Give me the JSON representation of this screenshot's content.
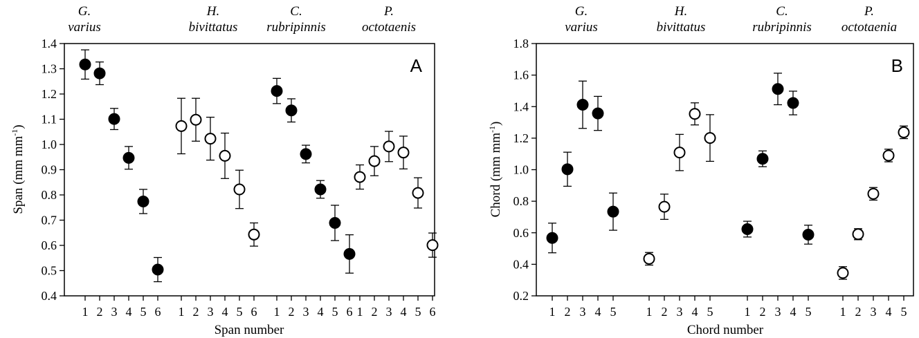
{
  "chart_data": [
    {
      "panel_label": "A",
      "type": "scatter",
      "xlabel": "Span number",
      "ylabel": "Span (mm mm",
      "ylabel_sup": "-1",
      "ylabel_end": ")",
      "ylim": [
        0.4,
        1.4
      ],
      "yticks": [
        "0.4",
        "0.5",
        "0.6",
        "0.7",
        "0.8",
        "0.9",
        "1.0",
        "1.1",
        "1.2",
        "1.3",
        "1.4"
      ],
      "groups": [
        {
          "species": [
            "G.",
            "varius"
          ],
          "filled": true,
          "x": [
            "1",
            "2",
            "3",
            "4",
            "5",
            "6"
          ],
          "y": [
            1.317,
            1.282,
            1.101,
            0.947,
            0.774,
            0.504
          ],
          "err": [
            0.058,
            0.045,
            0.042,
            0.045,
            0.048,
            0.048
          ]
        },
        {
          "species": [
            "H.",
            "bivittatus"
          ],
          "filled": false,
          "x": [
            "1",
            "2",
            "3",
            "4",
            "5",
            "6"
          ],
          "y": [
            1.073,
            1.098,
            1.023,
            0.955,
            0.822,
            0.643
          ],
          "err": [
            0.11,
            0.085,
            0.085,
            0.09,
            0.076,
            0.046
          ]
        },
        {
          "species": [
            "C.",
            "rubripinnis"
          ],
          "filled": true,
          "x": [
            "1",
            "2",
            "3",
            "4",
            "5",
            "6"
          ],
          "y": [
            1.212,
            1.135,
            0.962,
            0.822,
            0.689,
            0.566
          ],
          "err": [
            0.05,
            0.046,
            0.035,
            0.035,
            0.07,
            0.076
          ]
        },
        {
          "species": [
            "P.",
            "octotaenis"
          ],
          "filled": false,
          "x": [
            "1",
            "2",
            "3",
            "4",
            "5",
            "6"
          ],
          "y": [
            0.871,
            0.934,
            0.992,
            0.968,
            0.808,
            0.601
          ],
          "err": [
            0.048,
            0.058,
            0.06,
            0.065,
            0.06,
            0.048
          ]
        }
      ]
    },
    {
      "panel_label": "B",
      "type": "scatter",
      "xlabel": "Chord number",
      "ylabel": "Chord (mm mm",
      "ylabel_sup": "-1",
      "ylabel_end": ")",
      "ylim": [
        0.2,
        1.8
      ],
      "yticks": [
        "0.2",
        "0.4",
        "0.6",
        "0.8",
        "1.0",
        "1.2",
        "1.4",
        "1.6",
        "1.8"
      ],
      "groups": [
        {
          "species": [
            "G.",
            "varius"
          ],
          "filled": true,
          "x": [
            "1",
            "2",
            "3",
            "4",
            "5"
          ],
          "y": [
            0.567,
            1.003,
            1.412,
            1.357,
            0.734
          ],
          "err": [
            0.094,
            0.108,
            0.15,
            0.108,
            0.118
          ]
        },
        {
          "species": [
            "H.",
            "bivittatus"
          ],
          "filled": false,
          "x": [
            "1",
            "2",
            "3",
            "4",
            "5"
          ],
          "y": [
            0.435,
            0.765,
            1.109,
            1.354,
            1.201
          ],
          "err": [
            0.04,
            0.08,
            0.115,
            0.07,
            0.148
          ]
        },
        {
          "species": [
            "C.",
            "rubripinnis"
          ],
          "filled": true,
          "x": [
            "1",
            "2",
            "3",
            "4",
            "5"
          ],
          "y": [
            0.623,
            1.069,
            1.512,
            1.423,
            0.588
          ],
          "err": [
            0.05,
            0.05,
            0.1,
            0.075,
            0.06
          ]
        },
        {
          "species": [
            "P.",
            "octotaenia"
          ],
          "filled": false,
          "x": [
            "1",
            "2",
            "3",
            "4",
            "5"
          ],
          "y": [
            0.345,
            0.591,
            0.847,
            1.09,
            1.237
          ],
          "err": [
            0.04,
            0.035,
            0.04,
            0.04,
            0.04
          ]
        }
      ]
    }
  ]
}
